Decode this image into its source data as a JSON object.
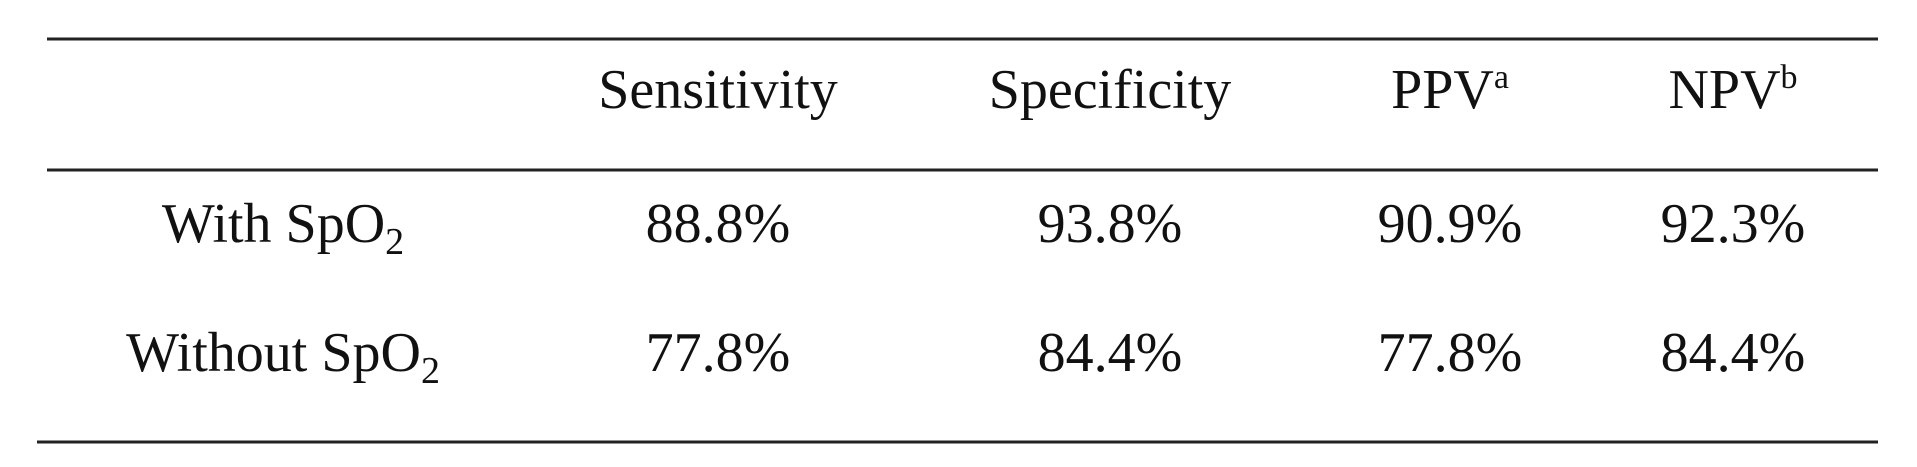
{
  "table": {
    "header": [
      {
        "text": "Sensitivity"
      },
      {
        "text": "Specificity"
      },
      {
        "text": "PPV",
        "sup": "a"
      },
      {
        "text": "NPV",
        "sup": "b"
      }
    ],
    "rows": [
      {
        "label": {
          "text": "With SpO",
          "sub": "2"
        },
        "cells": [
          "88.8%",
          "93.8%",
          "90.9%",
          "92.3%"
        ]
      },
      {
        "label": {
          "text": "Without SpO",
          "sub": "2"
        },
        "cells": [
          "77.8%",
          "84.4%",
          "77.8%",
          "84.4%"
        ]
      }
    ]
  }
}
